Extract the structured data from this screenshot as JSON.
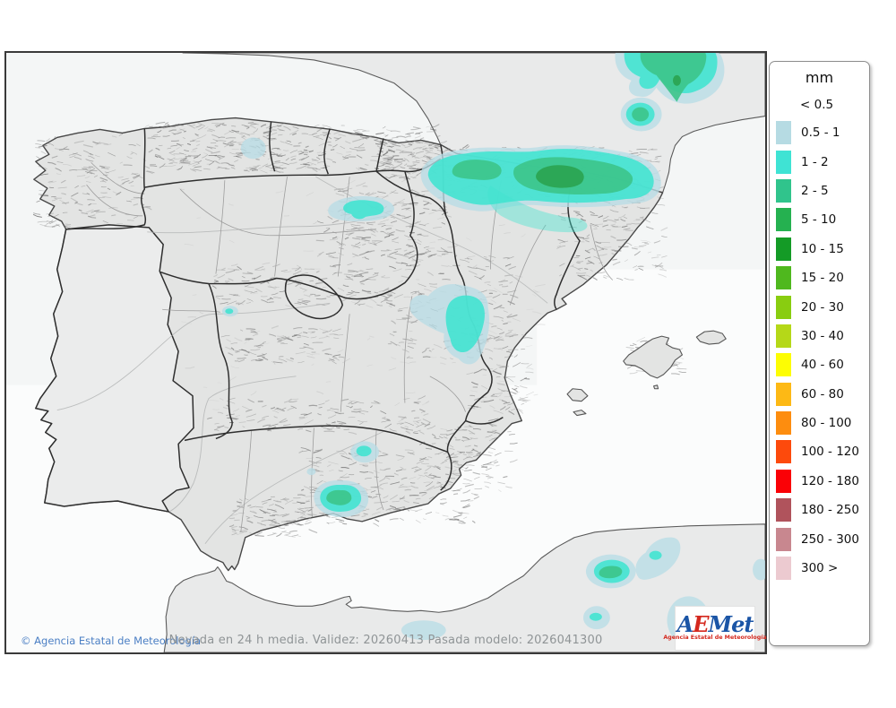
{
  "map": {
    "caption": "Nevada en 24 h media. Validez: 20260413 Pasada modelo: 2026041300",
    "copyright": "© Agencia Estatal de Meteorología",
    "sea_color": "#f4f6f6",
    "foreign_land_color": "#e9eaea",
    "spain_land_color": "#e3e4e3",
    "border_color": "#2e2e2e"
  },
  "logo": {
    "part_a": "A",
    "part_e": "E",
    "part_met": "Met",
    "subtitle": "Agencia Estatal de Meteorología",
    "blue": "#1b55a6",
    "red": "#d4281e"
  },
  "legend": {
    "title": "mm",
    "first_label": "< 0.5",
    "rows": [
      {
        "label": "0.5 - 1",
        "color": "#b6dbe3"
      },
      {
        "label": "1 - 2",
        "color": "#3fe3d4"
      },
      {
        "label": "2 - 5",
        "color": "#30c48c"
      },
      {
        "label": "5 - 10",
        "color": "#25b150"
      },
      {
        "label": "10 - 15",
        "color": "#149b26"
      },
      {
        "label": "15 - 20",
        "color": "#4fb81e"
      },
      {
        "label": "20 - 30",
        "color": "#89cd10"
      },
      {
        "label": "30 - 40",
        "color": "#b5d818"
      },
      {
        "label": "40 - 60",
        "color": "#fdfd03"
      },
      {
        "label": "60 - 80",
        "color": "#fdb915"
      },
      {
        "label": "80 - 100",
        "color": "#fd8d0f"
      },
      {
        "label": "100 - 120",
        "color": "#fd4a0c"
      },
      {
        "label": "120 - 180",
        "color": "#fa0106"
      },
      {
        "label": "180 - 250",
        "color": "#b0535c"
      },
      {
        "label": "250 - 300",
        "color": "#c8878f"
      },
      {
        "label": "300 >",
        "color": "#eccad0"
      }
    ],
    "overlay": {
      "light": "#b9dce6",
      "cyan": "#3fe4d0",
      "green": "#3cc489",
      "dark_green": "#2aa350"
    }
  }
}
